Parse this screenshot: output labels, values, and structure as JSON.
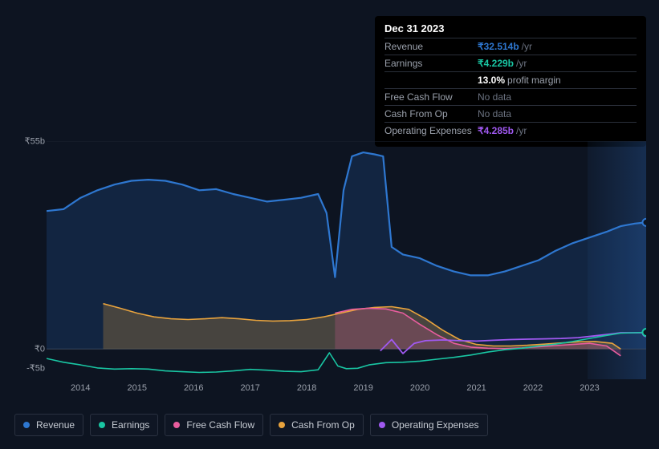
{
  "tooltip": {
    "date": "Dec 31 2023",
    "rows": [
      {
        "label": "Revenue",
        "value": "₹32.514b",
        "suffix": "/yr",
        "color": "#2e77d0"
      },
      {
        "label": "Earnings",
        "value": "₹4.229b",
        "suffix": "/yr",
        "color": "#19c6a3"
      },
      {
        "label": "",
        "value": "13.0%",
        "sublabel": "profit margin",
        "color": "#ffffff"
      },
      {
        "label": "Free Cash Flow",
        "value": "No data",
        "nodata": true
      },
      {
        "label": "Cash From Op",
        "value": "No data",
        "nodata": true
      },
      {
        "label": "Operating Expenses",
        "value": "₹4.285b",
        "suffix": "/yr",
        "color": "#a059f1"
      }
    ]
  },
  "chart": {
    "background_color": "#0d1421",
    "grid_color": "#3a4252",
    "x_categories": [
      "2014",
      "2015",
      "2016",
      "2017",
      "2018",
      "2019",
      "2020",
      "2021",
      "2022",
      "2023"
    ],
    "y_ticks": [
      {
        "v": 55,
        "label": "₹55b"
      },
      {
        "v": 0,
        "label": "₹0"
      },
      {
        "v": -5,
        "label": "-₹5b"
      }
    ],
    "y_min": -8,
    "y_max": 55,
    "x_min": 2013.4,
    "x_max": 2024.0,
    "tick_label_color": "#9aa0ab",
    "tick_fontsize": 11,
    "forecast_start": 2023.55,
    "series": {
      "revenue": {
        "color": "#2e77d0",
        "fill": "rgba(46,119,208,0.18)",
        "width": 2.2,
        "fill_enabled": true,
        "data": [
          [
            2013.4,
            36.5
          ],
          [
            2013.7,
            37
          ],
          [
            2014.0,
            40
          ],
          [
            2014.3,
            42
          ],
          [
            2014.6,
            43.5
          ],
          [
            2014.9,
            44.5
          ],
          [
            2015.2,
            44.8
          ],
          [
            2015.5,
            44.5
          ],
          [
            2015.8,
            43.5
          ],
          [
            2016.1,
            42
          ],
          [
            2016.4,
            42.3
          ],
          [
            2016.7,
            41
          ],
          [
            2017.0,
            40
          ],
          [
            2017.3,
            39
          ],
          [
            2017.6,
            39.5
          ],
          [
            2017.9,
            40
          ],
          [
            2018.2,
            41
          ],
          [
            2018.35,
            36
          ],
          [
            2018.5,
            19
          ],
          [
            2018.65,
            42
          ],
          [
            2018.8,
            51
          ],
          [
            2019.0,
            52
          ],
          [
            2019.2,
            51.5
          ],
          [
            2019.35,
            51
          ],
          [
            2019.5,
            27
          ],
          [
            2019.7,
            25
          ],
          [
            2020.0,
            24
          ],
          [
            2020.3,
            22
          ],
          [
            2020.6,
            20.5
          ],
          [
            2020.9,
            19.5
          ],
          [
            2021.2,
            19.5
          ],
          [
            2021.5,
            20.5
          ],
          [
            2021.8,
            22
          ],
          [
            2022.1,
            23.5
          ],
          [
            2022.4,
            26
          ],
          [
            2022.7,
            28
          ],
          [
            2023.0,
            29.5
          ],
          [
            2023.3,
            31
          ],
          [
            2023.55,
            32.5
          ],
          [
            2023.8,
            33.2
          ],
          [
            2024.0,
            33.5
          ]
        ],
        "end_marker": true
      },
      "earnings": {
        "color": "#19c6a3",
        "fill": "rgba(25,198,163,0.12)",
        "width": 1.6,
        "fill_enabled": false,
        "data": [
          [
            2013.4,
            -2.5
          ],
          [
            2013.7,
            -3.5
          ],
          [
            2014.0,
            -4.2
          ],
          [
            2014.3,
            -5
          ],
          [
            2014.6,
            -5.3
          ],
          [
            2014.9,
            -5.2
          ],
          [
            2015.2,
            -5.3
          ],
          [
            2015.5,
            -5.8
          ],
          [
            2015.8,
            -6
          ],
          [
            2016.1,
            -6.2
          ],
          [
            2016.4,
            -6.1
          ],
          [
            2016.7,
            -5.8
          ],
          [
            2017.0,
            -5.4
          ],
          [
            2017.3,
            -5.6
          ],
          [
            2017.6,
            -5.9
          ],
          [
            2017.9,
            -6
          ],
          [
            2018.2,
            -5.5
          ],
          [
            2018.4,
            -1
          ],
          [
            2018.55,
            -4.5
          ],
          [
            2018.7,
            -5.2
          ],
          [
            2018.9,
            -5.1
          ],
          [
            2019.1,
            -4.2
          ],
          [
            2019.4,
            -3.6
          ],
          [
            2019.7,
            -3.5
          ],
          [
            2020.0,
            -3.2
          ],
          [
            2020.3,
            -2.7
          ],
          [
            2020.6,
            -2.2
          ],
          [
            2020.9,
            -1.6
          ],
          [
            2021.2,
            -0.8
          ],
          [
            2021.5,
            -0.2
          ],
          [
            2021.8,
            0.2
          ],
          [
            2022.1,
            0.8
          ],
          [
            2022.4,
            1.3
          ],
          [
            2022.7,
            2.0
          ],
          [
            2023.0,
            2.8
          ],
          [
            2023.3,
            3.6
          ],
          [
            2023.55,
            4.2
          ],
          [
            2023.8,
            4.3
          ],
          [
            2024.0,
            4.4
          ]
        ],
        "end_marker": true
      },
      "free_cash_flow": {
        "color": "#e85d9e",
        "fill": "rgba(232,93,158,0.22)",
        "width": 1.6,
        "fill_enabled": true,
        "data": [
          [
            2018.5,
            9.5
          ],
          [
            2018.8,
            10.5
          ],
          [
            2019.1,
            10.8
          ],
          [
            2019.4,
            10.6
          ],
          [
            2019.7,
            9.5
          ],
          [
            2020.0,
            6.5
          ],
          [
            2020.3,
            3.8
          ],
          [
            2020.6,
            1.5
          ],
          [
            2020.9,
            0.5
          ],
          [
            2021.2,
            0.2
          ],
          [
            2021.5,
            0.1
          ],
          [
            2021.8,
            0.3
          ],
          [
            2022.1,
            0.6
          ],
          [
            2022.4,
            0.9
          ],
          [
            2022.7,
            1.2
          ],
          [
            2023.0,
            1.5
          ],
          [
            2023.3,
            0.8
          ],
          [
            2023.55,
            -1.8
          ]
        ],
        "end_marker": false
      },
      "cash_from_op": {
        "color": "#e8a33d",
        "fill": "rgba(232,163,61,0.25)",
        "width": 1.6,
        "fill_enabled": true,
        "data": [
          [
            2014.4,
            12.0
          ],
          [
            2014.7,
            10.8
          ],
          [
            2015.0,
            9.5
          ],
          [
            2015.3,
            8.5
          ],
          [
            2015.6,
            8.0
          ],
          [
            2015.9,
            7.8
          ],
          [
            2016.2,
            8.0
          ],
          [
            2016.5,
            8.3
          ],
          [
            2016.8,
            8.0
          ],
          [
            2017.1,
            7.6
          ],
          [
            2017.4,
            7.4
          ],
          [
            2017.7,
            7.5
          ],
          [
            2018.0,
            7.8
          ],
          [
            2018.3,
            8.5
          ],
          [
            2018.6,
            9.5
          ],
          [
            2018.9,
            10.5
          ],
          [
            2019.2,
            11.0
          ],
          [
            2019.5,
            11.2
          ],
          [
            2019.8,
            10.5
          ],
          [
            2020.1,
            8.0
          ],
          [
            2020.4,
            5.0
          ],
          [
            2020.7,
            2.5
          ],
          [
            2021.0,
            1.2
          ],
          [
            2021.3,
            0.8
          ],
          [
            2021.6,
            0.8
          ],
          [
            2021.9,
            1.0
          ],
          [
            2022.2,
            1.3
          ],
          [
            2022.5,
            1.6
          ],
          [
            2022.8,
            1.9
          ],
          [
            2023.1,
            2.0
          ],
          [
            2023.4,
            1.5
          ],
          [
            2023.55,
            0.0
          ]
        ],
        "end_marker": false
      },
      "operating_expenses": {
        "color": "#a059f1",
        "fill": "none",
        "width": 1.8,
        "fill_enabled": false,
        "data": [
          [
            2019.3,
            -0.5
          ],
          [
            2019.5,
            2.5
          ],
          [
            2019.7,
            -1.2
          ],
          [
            2019.9,
            1.5
          ],
          [
            2020.1,
            2.2
          ],
          [
            2020.4,
            2.4
          ],
          [
            2020.7,
            2.2
          ],
          [
            2021.0,
            2.1
          ],
          [
            2021.3,
            2.3
          ],
          [
            2021.6,
            2.5
          ],
          [
            2021.9,
            2.6
          ],
          [
            2022.2,
            2.7
          ],
          [
            2022.5,
            2.8
          ],
          [
            2022.8,
            3.0
          ],
          [
            2023.1,
            3.5
          ],
          [
            2023.4,
            4.0
          ],
          [
            2023.55,
            4.3
          ],
          [
            2023.8,
            4.3
          ],
          [
            2024.0,
            4.3
          ]
        ],
        "end_marker": true
      }
    }
  },
  "legend": [
    {
      "label": "Revenue",
      "color": "#2e77d0"
    },
    {
      "label": "Earnings",
      "color": "#19c6a3"
    },
    {
      "label": "Free Cash Flow",
      "color": "#e85d9e"
    },
    {
      "label": "Cash From Op",
      "color": "#e8a33d"
    },
    {
      "label": "Operating Expenses",
      "color": "#a059f1"
    }
  ]
}
